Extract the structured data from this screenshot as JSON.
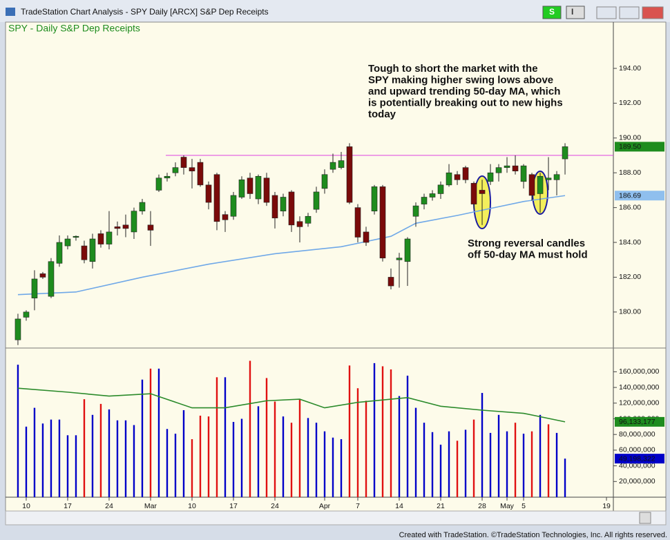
{
  "window": {
    "title": "TradeStation Chart Analysis - SPY Daily [ARCX] S&P Dep Receipts",
    "buttons": [
      "S",
      "I"
    ],
    "footer": "Created with TradeStation. ©TradeStation Technologies, Inc. All rights reserved."
  },
  "chart_data": [
    {
      "type": "candlestick",
      "title": "SPY - Daily  S&P Dep Receipts",
      "open": [
        178.4,
        179.7,
        180.8,
        182.2,
        180.9,
        182.8,
        183.8,
        184.3,
        183.8,
        182.9,
        184.5,
        183.9,
        184.9,
        185.0,
        184.6,
        185.8,
        185.0,
        187.0,
        187.7,
        188.0,
        188.9,
        188.3,
        188.6,
        187.3,
        187.9,
        185.6,
        185.5,
        186.6,
        187.7,
        186.5,
        187.7,
        186.7,
        185.8,
        186.9,
        185.2,
        185.1,
        185.9,
        187.1,
        188.2,
        188.3,
        189.5,
        186.0,
        184.6,
        185.8,
        187.2,
        182.0,
        183.0,
        182.9,
        185.5,
        186.2,
        186.6,
        186.8,
        187.3,
        187.9,
        188.3,
        187.4,
        187.0,
        187.5,
        188.0,
        188.3,
        188.4,
        187.5,
        187.9,
        186.8,
        187.6,
        187.6,
        188.8
      ],
      "high": [
        179.9,
        180.1,
        182.4,
        182.3,
        183.1,
        184.4,
        184.4,
        184.4,
        184.1,
        184.5,
        184.7,
        185.8,
        185.2,
        185.6,
        186.0,
        186.5,
        185.8,
        187.9,
        188.0,
        188.6,
        189.0,
        188.8,
        188.8,
        187.5,
        188.0,
        185.8,
        186.9,
        187.8,
        188.0,
        187.9,
        188.0,
        186.9,
        186.8,
        187.0,
        185.5,
        185.7,
        187.2,
        188.2,
        189.1,
        189.2,
        189.7,
        186.2,
        184.9,
        187.3,
        187.3,
        182.5,
        183.4,
        184.3,
        186.3,
        186.8,
        187.0,
        187.5,
        188.5,
        188.1,
        188.4,
        187.5,
        187.6,
        188.5,
        188.5,
        188.9,
        189.0,
        188.5,
        188.0,
        188.0,
        188.9,
        188.1,
        189.7
      ],
      "low": [
        178.1,
        179.5,
        180.1,
        181.9,
        180.8,
        182.6,
        183.6,
        184.1,
        182.8,
        182.5,
        183.7,
        183.6,
        184.4,
        184.3,
        184.2,
        185.6,
        183.8,
        186.9,
        187.5,
        187.8,
        187.9,
        187.1,
        187.2,
        185.9,
        184.7,
        184.6,
        185.3,
        186.5,
        186.5,
        186.2,
        186.1,
        184.8,
        185.5,
        184.6,
        184.0,
        184.9,
        185.7,
        186.8,
        188.0,
        188.2,
        186.2,
        184.0,
        183.8,
        185.6,
        182.9,
        181.3,
        181.4,
        181.5,
        184.9,
        185.9,
        186.4,
        186.5,
        187.2,
        187.3,
        187.4,
        185.9,
        185.0,
        187.3,
        187.5,
        188.0,
        187.9,
        187.1,
        186.4,
        185.7,
        187.0,
        186.7,
        187.9
      ],
      "close": [
        179.6,
        180.0,
        181.9,
        182.0,
        182.9,
        184.0,
        184.2,
        184.35,
        183.0,
        184.2,
        183.9,
        184.6,
        184.8,
        184.8,
        185.8,
        186.3,
        184.7,
        187.7,
        187.8,
        188.3,
        188.3,
        188.1,
        187.3,
        186.3,
        185.2,
        185.3,
        186.7,
        187.6,
        186.8,
        187.8,
        186.3,
        185.4,
        186.6,
        185.0,
        184.9,
        185.5,
        186.9,
        187.9,
        188.6,
        188.7,
        186.3,
        184.3,
        184.0,
        187.2,
        183.1,
        181.5,
        183.1,
        184.2,
        186.1,
        186.6,
        186.8,
        187.3,
        188.0,
        187.6,
        187.6,
        186.2,
        186.8,
        188.0,
        188.3,
        188.4,
        188.1,
        188.4,
        186.7,
        187.8,
        187.7,
        187.9,
        189.5
      ],
      "up_color": "#1e8c1e",
      "down_color": "#7a0a0a",
      "ma": {
        "color": "#6fa8e8",
        "x": [
          0,
          7,
          15,
          23,
          31,
          39,
          45,
          48,
          53,
          57,
          61,
          66
        ],
        "values": [
          181.0,
          181.15,
          182.0,
          182.75,
          183.35,
          183.75,
          184.35,
          185.1,
          185.55,
          185.95,
          186.35,
          186.69
        ]
      },
      "hline": {
        "value": 189.0,
        "color": "#e040e0"
      },
      "tags": [
        {
          "value": 189.5,
          "label": "189.50",
          "color": "#1e8c1e"
        },
        {
          "value": 186.69,
          "label": "186.69",
          "color": "#8fbfee"
        }
      ],
      "xlim": [
        -1.33,
        71.83
      ],
      "ylim": [
        177.97,
        196.62
      ],
      "yticks": [
        {
          "value": 180,
          "label": "180.00"
        },
        {
          "value": 182,
          "label": "182.00"
        },
        {
          "value": 184,
          "label": "184.00"
        },
        {
          "value": 186,
          "label": "186.00"
        },
        {
          "value": 188,
          "label": "188.00"
        },
        {
          "value": 190,
          "label": "190.00"
        },
        {
          "value": 192,
          "label": "192.00"
        },
        {
          "value": 194,
          "label": "194.00"
        }
      ],
      "annotations": [
        {
          "lines": [
            "Tough to short the market with the",
            "SPY making higher swing lows above",
            "and upward trending 50-day MA, which",
            "is potentially breaking out to new highs",
            "today"
          ]
        },
        {
          "lines": [
            "Strong reversal candles",
            "off 50-day MA must hold"
          ]
        }
      ]
    },
    {
      "type": "bar",
      "values": [
        169000000,
        90000000,
        114000000,
        94000000,
        99000000,
        99000000,
        79000000,
        79000000,
        125000000,
        105000000,
        119000000,
        112000000,
        98000000,
        98000000,
        92000000,
        150000000,
        164000000,
        164000000,
        87000000,
        81000000,
        111000000,
        74000000,
        104000000,
        103000000,
        153000000,
        153000000,
        96000000,
        100000000,
        174000000,
        116000000,
        152000000,
        122000000,
        103000000,
        95000000,
        125000000,
        101000000,
        95000000,
        84000000,
        76000000,
        74000000,
        168000000,
        139000000,
        123000000,
        171000000,
        167000000,
        163000000,
        129000000,
        155000000,
        114000000,
        95000000,
        83000000,
        67000000,
        84000000,
        72000000,
        86000000,
        99000000,
        133000000,
        82000000,
        105000000,
        84000000,
        95000000,
        81000000,
        84000000,
        105000000,
        93000000,
        82000000,
        49198322
      ],
      "up_color": "#0000c8",
      "down_color": "#e01010",
      "ma": {
        "color": "#2a8a2a",
        "x": [
          0,
          6,
          11,
          16,
          21,
          25,
          30,
          34,
          37,
          41,
          45,
          47,
          51,
          56,
          61,
          66
        ],
        "values": [
          139000000,
          134000000,
          129000000,
          132000000,
          114000000,
          114000000,
          123000000,
          125000000,
          114000000,
          121000000,
          125000000,
          127000000,
          116000000,
          111000000,
          107000000,
          96133177
        ]
      },
      "tags": [
        {
          "value": 96133177,
          "label": "96,133,177",
          "color": "#1e8c1e"
        },
        {
          "value": 49198322,
          "label": "49,198,322",
          "color": "#0000c8"
        }
      ],
      "xlim": [
        -1.33,
        71.83
      ],
      "ylim": [
        0,
        189400000
      ],
      "yticks": [
        {
          "value": 20000000,
          "label": "20,000,000"
        },
        {
          "value": 40000000,
          "label": "40,000,000"
        },
        {
          "value": 60000000,
          "label": "60,000,000"
        },
        {
          "value": 80000000,
          "label": "80,000,000"
        },
        {
          "value": 100000000,
          "label": "100,000,000"
        },
        {
          "value": 120000000,
          "label": "120,000,000"
        },
        {
          "value": 140000000,
          "label": "140,000,000"
        },
        {
          "value": 160000000,
          "label": "160,000,000"
        }
      ],
      "xticks": [
        {
          "value": 1,
          "label": "10"
        },
        {
          "value": 6,
          "label": "17"
        },
        {
          "value": 11,
          "label": "24"
        },
        {
          "value": 16,
          "label": "Mar"
        },
        {
          "value": 21,
          "label": "10"
        },
        {
          "value": 26,
          "label": "17"
        },
        {
          "value": 31,
          "label": "24"
        },
        {
          "value": 37,
          "label": "Apr"
        },
        {
          "value": 41,
          "label": "7"
        },
        {
          "value": 46,
          "label": "14"
        },
        {
          "value": 51,
          "label": "21"
        },
        {
          "value": 56,
          "label": "28"
        },
        {
          "value": 59,
          "label": "May"
        },
        {
          "value": 61,
          "label": "5"
        },
        {
          "value": 71,
          "label": "19"
        }
      ]
    }
  ]
}
